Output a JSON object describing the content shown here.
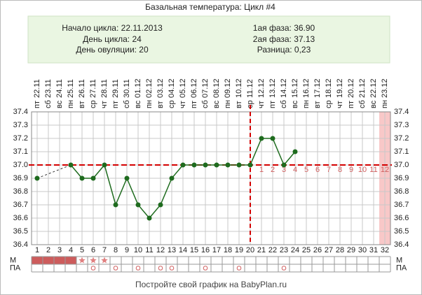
{
  "chart_data": {
    "type": "line",
    "title": "Базальная температура: Цикл #4",
    "info": {
      "left": [
        "Начало цикла: 22.11.2013",
        "День цикла: 24",
        "День овуляции: 20"
      ],
      "right": [
        "1ая фаза: 36.90",
        "2ая фаза: 37.13",
        "Разница: 0,23"
      ]
    },
    "x": [
      1,
      2,
      3,
      4,
      5,
      6,
      7,
      8,
      9,
      10,
      11,
      12,
      13,
      14,
      15,
      16,
      17,
      18,
      19,
      20,
      21,
      22,
      23,
      24,
      25,
      26,
      27,
      28,
      29,
      30,
      31,
      32
    ],
    "dates": [
      "22.11",
      "23.11",
      "24.11",
      "25.11",
      "26.11",
      "27.11",
      "28.11",
      "29.11",
      "30.11",
      "01.12",
      "02.12",
      "03.12",
      "04.12",
      "05.12",
      "06.12",
      "07.12",
      "08.12",
      "09.12",
      "10.12",
      "11.12",
      "12.12",
      "13.12",
      "14.12",
      "15.12",
      "16.12",
      "17.12",
      "18.12",
      "19.12",
      "20.12",
      "21.12",
      "22.12",
      "23.12"
    ],
    "weekdays": [
      "пт",
      "сб",
      "вс",
      "пн",
      "вт",
      "ср",
      "чт",
      "пт",
      "сб",
      "вс",
      "пн",
      "вт",
      "ср",
      "чт",
      "пт",
      "сб",
      "вс",
      "пн",
      "вт",
      "ср",
      "чт",
      "пт",
      "сб",
      "вс",
      "пн",
      "вт",
      "ср",
      "чт",
      "пт",
      "сб",
      "вс",
      "пн"
    ],
    "values": [
      36.9,
      null,
      null,
      37,
      36.9,
      36.9,
      37,
      36.7,
      36.9,
      36.7,
      36.6,
      36.7,
      36.9,
      37,
      37,
      37,
      37,
      37,
      37,
      37,
      37.2,
      37.2,
      37,
      37.1,
      null,
      null,
      null,
      null,
      null,
      null,
      null,
      null
    ],
    "color": "#1e6b1e",
    "ylim": [
      36.4,
      37.4
    ],
    "yticks": [
      37.4,
      37.3,
      37.2,
      37.1,
      {
        "value": 37,
        "label": "37.0"
      },
      36.9,
      36.8,
      36.7,
      36.6,
      36.5,
      36.4
    ],
    "grid": true,
    "coverline": 37,
    "ovulation_day": 20,
    "phase2_labels": [
      1,
      2,
      3,
      4,
      5,
      6,
      7,
      8,
      9,
      10,
      11,
      12
    ],
    "shaded_days": [
      32
    ],
    "menstruation": {
      "label": "М",
      "heavy_days": [
        1,
        2,
        3,
        4
      ],
      "spotting_days": [
        5,
        6,
        7
      ]
    },
    "intercourse": {
      "label": "ПА",
      "days": [
        6,
        8,
        10,
        12,
        13,
        16,
        19,
        23
      ]
    },
    "footer": "Постройте свой график на BabyPlan.ru"
  }
}
